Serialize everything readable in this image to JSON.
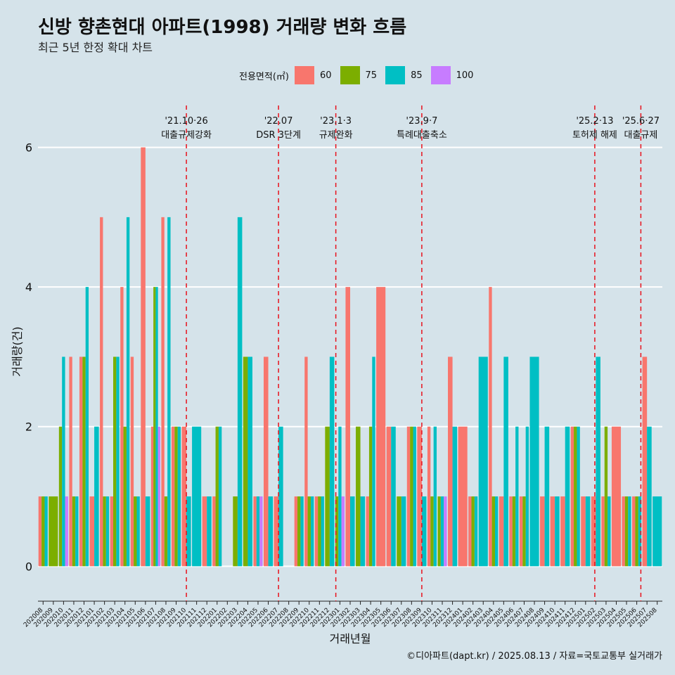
{
  "header": {
    "title": "신방 향촌현대 아파트(1998) 거래량 변화 흐름",
    "subtitle": "최근 5년 한정 확대 차트"
  },
  "legend": {
    "title": "전용면적(㎡)",
    "items": [
      {
        "label": "60",
        "color": "#f8766d"
      },
      {
        "label": "75",
        "color": "#7cae00"
      },
      {
        "label": "85",
        "color": "#00bfc4"
      },
      {
        "label": "100",
        "color": "#c77cff"
      }
    ]
  },
  "footer": "©디아파트(dapt.kr) / 2025.08.13 / 자료=국토교통부 실거래가",
  "chart_data": {
    "type": "bar",
    "xlabel": "거래년월",
    "ylabel": "거래량(건)",
    "ylim": [
      0,
      6.6
    ],
    "yticks": [
      0,
      2,
      4,
      6
    ],
    "grid": true,
    "legend_position": "top",
    "categories": [
      "202008",
      "202009",
      "202010",
      "202011",
      "202012",
      "202101",
      "202102",
      "202103",
      "202104",
      "202105",
      "202106",
      "202107",
      "202108",
      "202109",
      "202110",
      "202111",
      "202112",
      "202201",
      "202202",
      "202203",
      "202204",
      "202205",
      "202206",
      "202207",
      "202208",
      "202209",
      "202210",
      "202211",
      "202212",
      "202301",
      "202302",
      "202303",
      "202304",
      "202305",
      "202306",
      "202307",
      "202308",
      "202309",
      "202310",
      "202311",
      "202312",
      "202401",
      "202402",
      "202403",
      "202404",
      "202405",
      "202406",
      "202407",
      "202408",
      "202409",
      "202410",
      "202411",
      "202412",
      "202501",
      "202502",
      "202503",
      "202504",
      "202505",
      "202506",
      "202507",
      "202508"
    ],
    "series": [
      {
        "name": "60",
        "color": "#f8766d",
        "values": [
          1,
          0,
          0,
          3,
          3,
          1,
          5,
          1,
          4,
          3,
          6,
          2,
          5,
          2,
          2,
          0,
          1,
          1,
          0,
          0,
          0,
          1,
          3,
          1,
          0,
          1,
          3,
          1,
          0,
          0,
          4,
          0,
          1,
          4,
          2,
          0,
          2,
          2,
          2,
          0,
          3,
          2,
          1,
          0,
          4,
          1,
          1,
          1,
          0,
          1,
          1,
          1,
          2,
          1,
          1,
          1,
          2,
          1,
          1,
          3,
          0
        ]
      },
      {
        "name": "75",
        "color": "#7cae00",
        "values": [
          1,
          1,
          2,
          1,
          3,
          0,
          1,
          3,
          2,
          1,
          0,
          4,
          1,
          2,
          0,
          0,
          0,
          2,
          0,
          1,
          3,
          0,
          0,
          0,
          0,
          1,
          1,
          1,
          2,
          1,
          0,
          2,
          2,
          0,
          0,
          1,
          2,
          0,
          1,
          1,
          0,
          0,
          1,
          0,
          1,
          0,
          1,
          1,
          0,
          0,
          0,
          0,
          2,
          0,
          0,
          2,
          0,
          1,
          1,
          0,
          0
        ]
      },
      {
        "name": "85",
        "color": "#00bfc4",
        "values": [
          1,
          0,
          3,
          1,
          4,
          2,
          1,
          3,
          5,
          1,
          1,
          4,
          5,
          2,
          1,
          2,
          1,
          2,
          0,
          5,
          3,
          1,
          1,
          2,
          0,
          1,
          1,
          1,
          3,
          2,
          1,
          1,
          3,
          0,
          2,
          1,
          2,
          1,
          2,
          1,
          2,
          0,
          1,
          3,
          1,
          3,
          2,
          2,
          3,
          2,
          1,
          2,
          2,
          1,
          3,
          1,
          0,
          1,
          1,
          2,
          1
        ]
      },
      {
        "name": "100",
        "color": "#c77cff",
        "values": [
          0,
          0,
          1,
          0,
          0,
          0,
          0,
          0,
          0,
          0,
          0,
          2,
          0,
          0,
          0,
          0,
          0,
          0,
          0,
          0,
          0,
          1,
          0,
          0,
          0,
          0,
          0,
          0,
          0,
          1,
          0,
          0,
          0,
          0,
          0,
          0,
          0,
          0,
          0,
          1,
          0,
          0,
          0,
          0,
          0,
          0,
          0,
          0,
          0,
          0,
          0,
          0,
          0,
          0,
          0,
          0,
          0,
          0,
          0,
          0,
          0
        ]
      }
    ],
    "events": [
      {
        "date": "'21.10·26",
        "label": "대출규제강화",
        "category": "202110",
        "offset": 0.5
      },
      {
        "date": "'22.07",
        "label": "DSR 3단계",
        "category": "202207",
        "offset": 0.5
      },
      {
        "date": "'23.1·3",
        "label": "규제완화",
        "category": "202301",
        "offset": 0.1
      },
      {
        "date": "'23.9·7",
        "label": "특례대출축소",
        "category": "202309",
        "offset": 0.5
      },
      {
        "date": "'25.2·13",
        "label": "토허제 해제",
        "category": "202502",
        "offset": 0.4
      },
      {
        "date": "'25.6·27",
        "label": "대출규제",
        "category": "202506",
        "offset": 0.9
      }
    ]
  }
}
